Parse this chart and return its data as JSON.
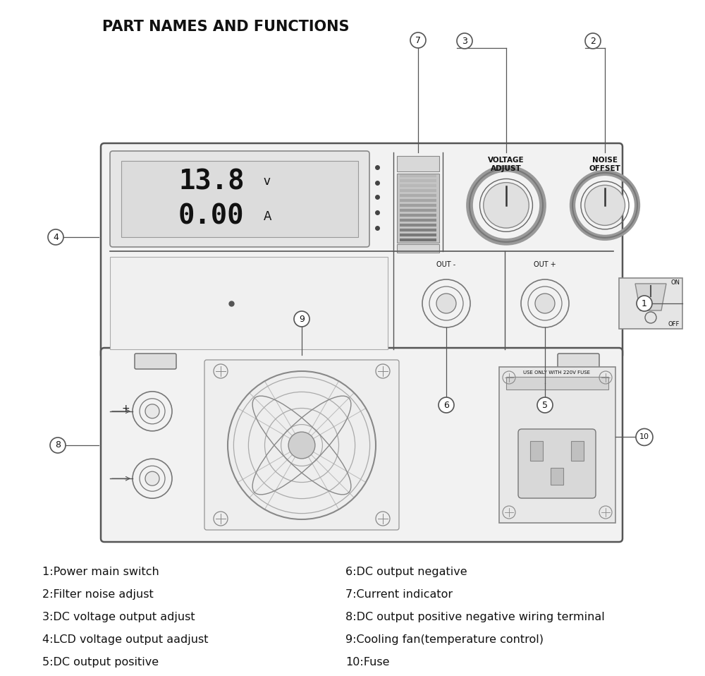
{
  "title": "PART NAMES AND FUNCTIONS",
  "title_fontsize": 15,
  "title_weight": "bold",
  "bg_color": "#ffffff",
  "line_color": "#555555",
  "text_color": "#111111",
  "labels_left": [
    "1:Power main switch",
    "2:Filter noise adjust",
    "3:DC voltage output adjust",
    "4:LCD voltage output aadjust",
    "5:DC output positive"
  ],
  "labels_right": [
    "6:DC output negative",
    "7:Current indicator",
    "8:DC output positive negative wiring terminal",
    "9:Cooling fan(temperature control)",
    "10:Fuse"
  ],
  "lcd_voltage": "13.8",
  "lcd_current": "0.00",
  "unit_v": "v",
  "unit_a": "A",
  "knob1_label": "VOLTAGE\nADJUST",
  "knob2_label": "NOISE\nOFFSET",
  "out_minus": "OUT -",
  "out_plus": "OUT +",
  "on_label": "ON",
  "off_label": "OFF",
  "fuse_label": "USE ONLY WITH 220V FUSE"
}
